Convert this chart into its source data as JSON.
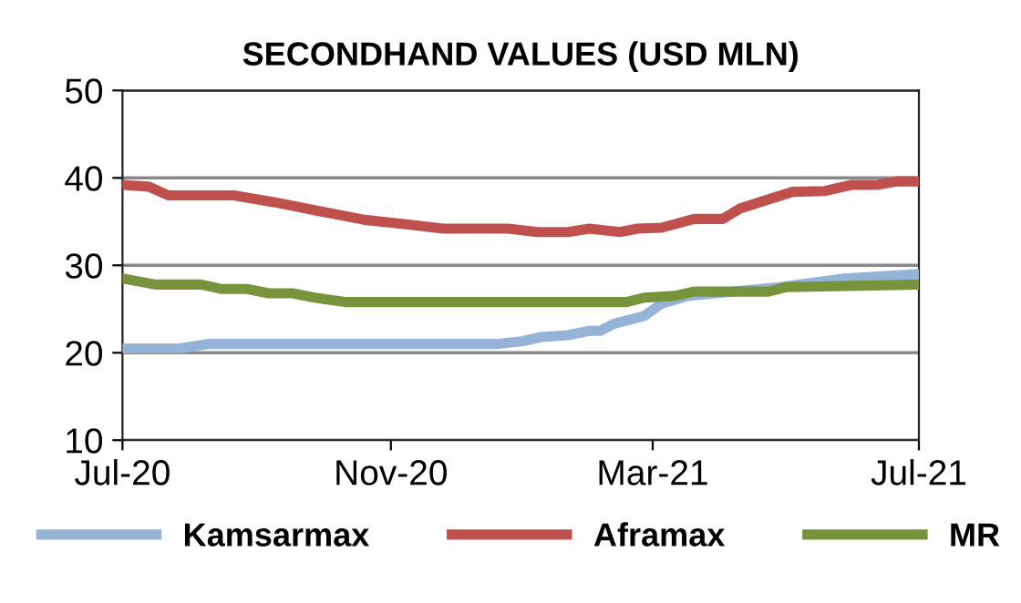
{
  "chart_data": {
    "type": "line",
    "title": "SECONDHAND VALUES (USD MLN)",
    "xlim": [
      "2020-07",
      "2021-07"
    ],
    "xticks": [
      {
        "value": "2020-07",
        "label": "Jul-20"
      },
      {
        "value": "2020-11",
        "label": "Nov-20"
      },
      {
        "value": "2021-03",
        "label": "Mar-21"
      },
      {
        "value": "2021-07",
        "label": "Jul-21"
      }
    ],
    "ylim": [
      10,
      50
    ],
    "yticks": [
      10,
      20,
      30,
      40,
      50
    ],
    "grid": "y",
    "legend": "bottom",
    "marker": "none",
    "line_style": "solid",
    "series": [
      {
        "name": "Kamsarmax",
        "color": "#95b3d7",
        "x": [
          "2020-07-01",
          "2020-07-27",
          "2020-08-09",
          "2020-12-19",
          "2020-12-31",
          "2021-01-09",
          "2021-01-21",
          "2021-01-31",
          "2021-02-05",
          "2021-02-11",
          "2021-02-25",
          "2021-03-05",
          "2021-03-17",
          "2021-04-28",
          "2021-05-28",
          "2021-07-01"
        ],
        "values": [
          20.5,
          20.5,
          21,
          21,
          21.3,
          21.8,
          22,
          22.5,
          22.5,
          23.3,
          24.2,
          25.6,
          26.5,
          27.5,
          28.5,
          29
        ]
      },
      {
        "name": "Aframax",
        "color": "#c0504d",
        "x": [
          "2020-07-01",
          "2020-07-13",
          "2020-07-22",
          "2020-08-21",
          "2020-09-09",
          "2020-09-27",
          "2020-10-20",
          "2020-11-08",
          "2020-11-25",
          "2020-12-25",
          "2021-01-07",
          "2021-01-21",
          "2021-01-31",
          "2021-02-14",
          "2021-02-22",
          "2021-03-05",
          "2021-03-20",
          "2021-04-02",
          "2021-04-10",
          "2021-05-04",
          "2021-05-19",
          "2021-05-31",
          "2021-06-12",
          "2021-06-21",
          "2021-07-01"
        ],
        "values": [
          39.2,
          39,
          38,
          38,
          37.2,
          36.3,
          35.2,
          34.7,
          34.2,
          34.2,
          33.8,
          33.8,
          34.2,
          33.8,
          34.2,
          34.3,
          35.3,
          35.3,
          36.5,
          38.4,
          38.5,
          39.2,
          39.2,
          39.6,
          39.6
        ]
      },
      {
        "name": "MR",
        "color": "#77933c",
        "x": [
          "2020-07-01",
          "2020-07-16",
          "2020-08-06",
          "2020-08-15",
          "2020-08-27",
          "2020-09-06",
          "2020-09-17",
          "2020-09-27",
          "2020-10-11",
          "2021-02-17",
          "2021-02-25",
          "2021-03-11",
          "2021-03-20",
          "2021-04-23",
          "2021-05-01",
          "2021-07-01"
        ],
        "values": [
          28.5,
          27.8,
          27.8,
          27.3,
          27.3,
          26.8,
          26.8,
          26.3,
          25.8,
          25.8,
          26.3,
          26.5,
          27,
          27,
          27.5,
          27.8
        ]
      }
    ]
  }
}
